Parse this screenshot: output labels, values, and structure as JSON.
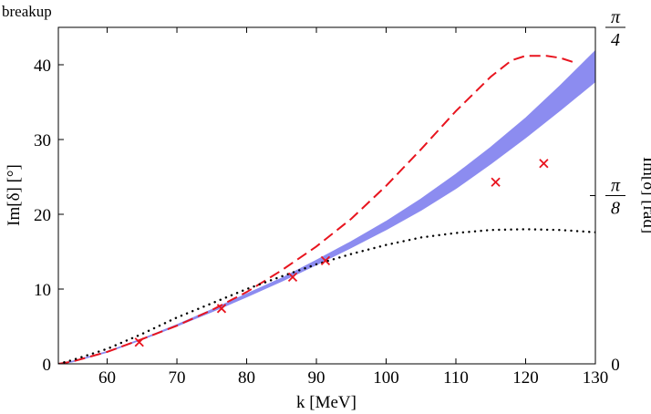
{
  "chart_data": {
    "type": "line",
    "title": "breakup",
    "xlabel": "k [MeV]",
    "ylabel": "Im[δ] [°]",
    "ylabel_right": "Im[δ] [rad]",
    "xlim": [
      53,
      130
    ],
    "ylim": [
      0,
      45
    ],
    "x_ticks": [
      60,
      70,
      80,
      90,
      100,
      110,
      120,
      130
    ],
    "y_ticks": [
      0,
      10,
      20,
      30,
      40
    ],
    "right_ticks": [
      {
        "value": 0,
        "numerator": "0",
        "denominator": ""
      },
      {
        "value": 22.5,
        "numerator": "π",
        "denominator": "8"
      },
      {
        "value": 45,
        "numerator": "π",
        "denominator": "4"
      }
    ],
    "grid": false,
    "series": [
      {
        "name": "band",
        "style": "band",
        "color": "#8c8cf0",
        "x": [
          53,
          55,
          60,
          65,
          70,
          75,
          80,
          85,
          90,
          95,
          100,
          105,
          110,
          115,
          120,
          125,
          130
        ],
        "lower": [
          0,
          0.3,
          1.6,
          3.3,
          5.1,
          7.0,
          9.0,
          11.1,
          13.3,
          15.6,
          18.0,
          20.6,
          23.5,
          26.8,
          30.3,
          34.0,
          37.8
        ],
        "upper": [
          0,
          0.3,
          1.6,
          3.3,
          5.2,
          7.2,
          9.3,
          11.4,
          13.8,
          16.3,
          19.0,
          22.0,
          25.3,
          28.9,
          32.8,
          37.2,
          41.8
        ]
      },
      {
        "name": "dashed",
        "style": "dashed",
        "color": "#e8141e",
        "x": [
          53,
          55,
          60,
          65,
          70,
          75,
          80,
          85,
          90,
          95,
          100,
          105,
          110,
          115,
          118,
          120,
          123,
          125,
          127
        ],
        "values": [
          0,
          0.3,
          1.6,
          3.3,
          5.1,
          7.2,
          9.6,
          12.5,
          15.7,
          19.4,
          23.8,
          28.7,
          33.8,
          38.4,
          40.6,
          41.2,
          41.2,
          40.9,
          40.3
        ]
      },
      {
        "name": "dotted",
        "style": "dotted",
        "color": "#000000",
        "x": [
          53,
          55,
          60,
          65,
          70,
          75,
          80,
          85,
          90,
          95,
          100,
          105,
          110,
          115,
          120,
          125,
          130
        ],
        "values": [
          0,
          0.5,
          2.0,
          4.0,
          6.2,
          8.1,
          10.0,
          11.7,
          13.3,
          14.7,
          15.9,
          16.9,
          17.5,
          17.9,
          18.0,
          17.9,
          17.6
        ]
      },
      {
        "name": "data",
        "style": "markers",
        "marker": "x",
        "color": "#e8141e",
        "x": [
          64.6,
          76.4,
          86.6,
          91.3,
          115.7,
          122.6
        ],
        "values": [
          2.9,
          7.4,
          11.6,
          13.8,
          24.3,
          26.8
        ]
      }
    ]
  }
}
